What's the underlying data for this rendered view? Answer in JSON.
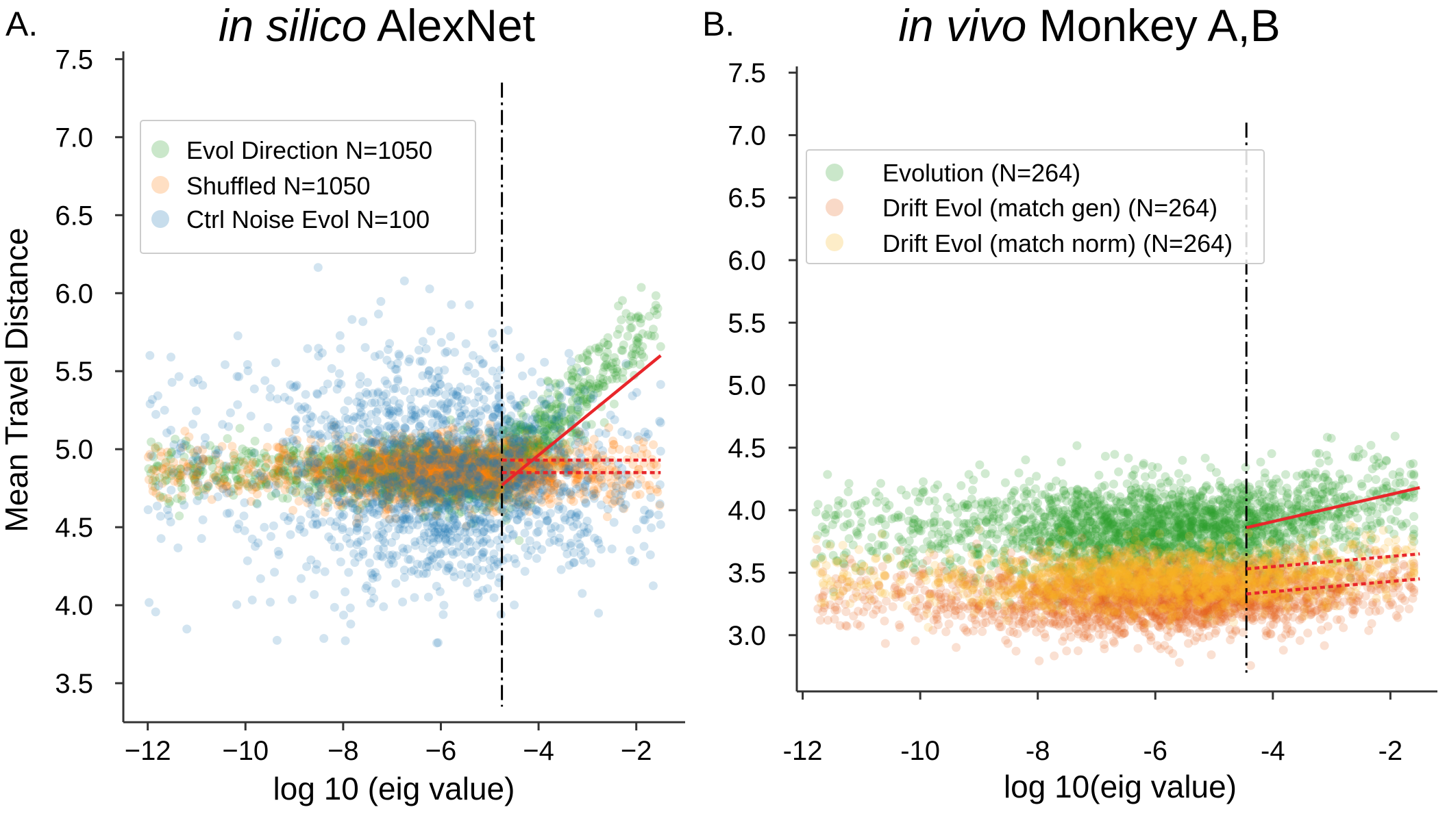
{
  "chart_data": [
    {
      "panel": "A.",
      "type": "scatter",
      "title": "in silico AlexNet",
      "title_italic": "in silico",
      "title_rest": "AlexNet",
      "xlabel": "log 10 (eig value)",
      "ylabel": "Mean Travel Distance",
      "xlim": [
        -12.5,
        -1.0
      ],
      "ylim": [
        3.25,
        7.55
      ],
      "xticks": [
        -12,
        -10,
        -8,
        -6,
        -4,
        -2
      ],
      "xtick_labels": [
        "−12",
        "−10",
        "−8",
        "−6",
        "−4",
        "−2"
      ],
      "yticks": [
        3.5,
        4.0,
        4.5,
        5.0,
        5.5,
        6.0,
        6.5,
        7.0,
        7.5
      ],
      "ytick_labels": [
        "3.5",
        "4.0",
        "4.5",
        "5.0",
        "5.5",
        "6.0",
        "6.5",
        "7.0",
        "7.5"
      ],
      "legend_position": "upper-left",
      "cutoff_x": -4.75,
      "cutoff_y_range": [
        3.35,
        7.35
      ],
      "series": [
        {
          "name": "Evol Direction N=1050",
          "color": "#2ca02c",
          "alpha": 0.22,
          "n_points": 2200,
          "x_range": [
            -12.0,
            -1.5
          ],
          "x_center": -5.7,
          "x_spread": 1.3,
          "y_center": 4.85,
          "y_spread": 0.09,
          "slope_right": 0.31,
          "spread_right": 0.13
        },
        {
          "name": "Shuffled N=1050",
          "color": "#ff7f0e",
          "alpha": 0.22,
          "n_points": 1800,
          "x_range": [
            -12.0,
            -1.5
          ],
          "x_center": -5.7,
          "x_spread": 1.3,
          "y_center": 4.86,
          "y_spread": 0.1,
          "slope_right": 0.0,
          "spread_right": 0.1
        },
        {
          "name": "Ctrl Noise Evol N=100",
          "color": "#1f77b4",
          "alpha": 0.2,
          "n_points": 1700,
          "x_range": [
            -12.0,
            -1.5
          ],
          "x_center": -5.9,
          "x_spread": 1.5,
          "y_center": 4.85,
          "y_spread": 0.38,
          "slope_right": 0.0,
          "spread_right": 0.3
        }
      ],
      "fits": [
        {
          "style": "solid",
          "color": "#e8262a",
          "x": [
            -4.75,
            -1.5
          ],
          "y": [
            4.77,
            5.6
          ]
        },
        {
          "style": "dotted",
          "color": "#e8262a",
          "x": [
            -4.75,
            -1.5
          ],
          "y": [
            4.93,
            4.93
          ]
        },
        {
          "style": "dotted",
          "color": "#e8262a",
          "x": [
            -4.75,
            -1.5
          ],
          "y": [
            4.85,
            4.85
          ]
        }
      ]
    },
    {
      "panel": "B.",
      "type": "scatter",
      "title": "in vivo Monkey A,B",
      "title_italic": "in vivo",
      "title_rest": "Monkey A,B",
      "xlabel": "log 10(eig value)",
      "ylabel": "",
      "xlim": [
        -12.1,
        -1.2
      ],
      "ylim": [
        2.55,
        7.55
      ],
      "xticks": [
        -12,
        -10,
        -8,
        -6,
        -4,
        -2
      ],
      "xtick_labels": [
        "-12",
        "-10",
        "-8",
        "-6",
        "-4",
        "-2"
      ],
      "yticks": [
        3.0,
        3.5,
        4.0,
        4.5,
        5.0,
        5.5,
        6.0,
        6.5,
        7.0,
        7.5
      ],
      "ytick_labels": [
        "3.0",
        "3.5",
        "4.0",
        "4.5",
        "5.0",
        "5.5",
        "6.0",
        "6.5",
        "7.0",
        "7.5"
      ],
      "legend_position": "upper-left",
      "cutoff_x": -4.45,
      "cutoff_y_range": [
        2.7,
        7.1
      ],
      "series": [
        {
          "name": "Evolution (N=264)",
          "color": "#2ca02c",
          "alpha": 0.22,
          "n_points": 2400,
          "x_range": [
            -11.8,
            -1.6
          ],
          "x_center": -5.8,
          "x_spread": 1.6,
          "y_center": 3.83,
          "y_spread": 0.2,
          "slope_right": 0.11,
          "spread_right": 0.2
        },
        {
          "name": "Drift Evol (match gen) (N=264)",
          "color": "#e6661f",
          "alpha": 0.2,
          "n_points": 2200,
          "x_range": [
            -11.8,
            -1.6
          ],
          "x_center": -5.8,
          "x_spread": 1.6,
          "y_center": 3.3,
          "y_spread": 0.15,
          "slope_right": 0.05,
          "spread_right": 0.15
        },
        {
          "name": "Drift Evol (match norm) (N=264)",
          "color": "#f9b624",
          "alpha": 0.2,
          "n_points": 1600,
          "x_range": [
            -11.8,
            -1.6
          ],
          "x_center": -5.8,
          "x_spread": 1.6,
          "y_center": 3.45,
          "y_spread": 0.13,
          "slope_right": 0.04,
          "spread_right": 0.13
        }
      ],
      "fits": [
        {
          "style": "solid",
          "color": "#e8262a",
          "x": [
            -4.45,
            -1.5
          ],
          "y": [
            3.86,
            4.18
          ]
        },
        {
          "style": "dotted",
          "color": "#e8262a",
          "x": [
            -4.45,
            -1.5
          ],
          "y": [
            3.53,
            3.65
          ]
        },
        {
          "style": "dotted",
          "color": "#e8262a",
          "x": [
            -4.45,
            -1.5
          ],
          "y": [
            3.33,
            3.45
          ]
        }
      ]
    }
  ]
}
